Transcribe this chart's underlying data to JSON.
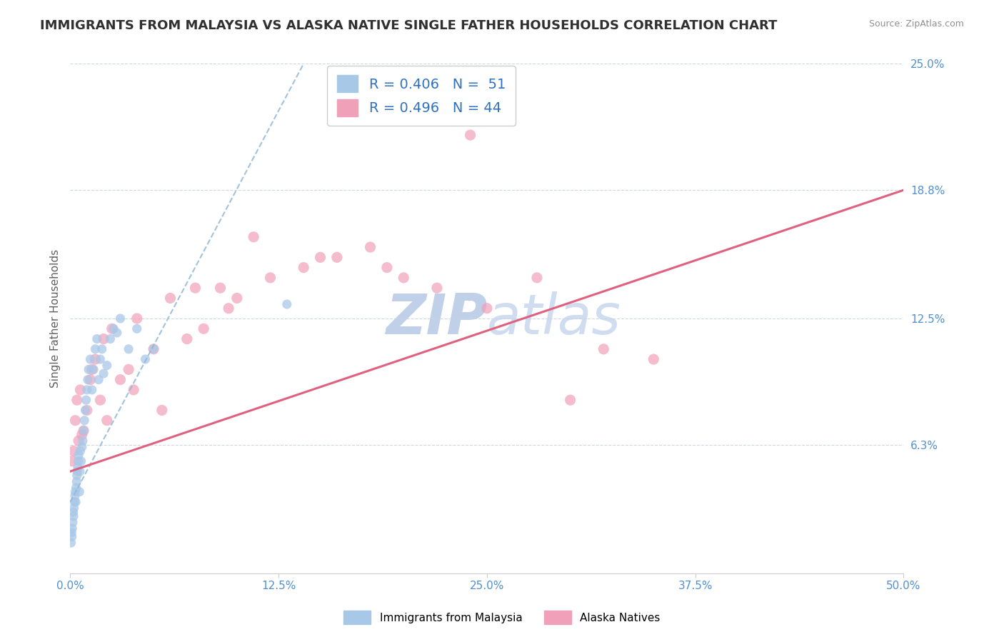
{
  "title": "IMMIGRANTS FROM MALAYSIA VS ALASKA NATIVE SINGLE FATHER HOUSEHOLDS CORRELATION CHART",
  "source": "Source: ZipAtlas.com",
  "ylabel": "Single Father Households",
  "legend_blue_r": "R = 0.406",
  "legend_blue_n": "N =  51",
  "legend_pink_r": "R = 0.496",
  "legend_pink_n": "N = 44",
  "xlim": [
    0.0,
    50.0
  ],
  "ylim": [
    0.0,
    25.0
  ],
  "blue_color": "#a8c8e8",
  "pink_color": "#f0a0b8",
  "blue_line_color": "#90b8d8",
  "pink_line_color": "#e06080",
  "watermark_color": "#c8d8f0",
  "background_color": "#ffffff",
  "grid_color": "#c8d4e4",
  "tick_color": "#5090d0",
  "title_color": "#303030",
  "source_color": "#909090",
  "blue_scatter_x": [
    0.05,
    0.08,
    0.1,
    0.12,
    0.15,
    0.18,
    0.2,
    0.22,
    0.25,
    0.28,
    0.3,
    0.33,
    0.35,
    0.38,
    0.4,
    0.42,
    0.45,
    0.48,
    0.5,
    0.55,
    0.58,
    0.6,
    0.65,
    0.7,
    0.75,
    0.8,
    0.85,
    0.9,
    0.95,
    1.0,
    1.05,
    1.1,
    1.2,
    1.3,
    1.4,
    1.5,
    1.6,
    1.7,
    1.8,
    1.9,
    2.0,
    2.2,
    2.4,
    2.6,
    2.8,
    3.0,
    3.5,
    4.0,
    4.5,
    5.0,
    13.0
  ],
  "blue_scatter_y": [
    1.5,
    2.0,
    1.8,
    2.2,
    2.5,
    3.0,
    2.8,
    3.2,
    3.5,
    3.8,
    4.0,
    3.5,
    4.2,
    4.5,
    4.8,
    5.0,
    5.2,
    5.5,
    5.8,
    4.0,
    5.0,
    6.0,
    5.5,
    6.2,
    6.5,
    7.0,
    7.5,
    8.0,
    8.5,
    9.0,
    9.5,
    10.0,
    10.5,
    9.0,
    10.0,
    11.0,
    11.5,
    9.5,
    10.5,
    11.0,
    9.8,
    10.2,
    11.5,
    12.0,
    11.8,
    12.5,
    11.0,
    12.0,
    10.5,
    11.0,
    13.2
  ],
  "pink_scatter_x": [
    0.1,
    0.2,
    0.3,
    0.4,
    0.5,
    0.6,
    0.8,
    1.0,
    1.2,
    1.5,
    1.8,
    2.0,
    2.5,
    3.0,
    3.5,
    4.0,
    5.0,
    6.0,
    7.0,
    8.0,
    9.0,
    10.0,
    12.0,
    14.0,
    16.0,
    18.0,
    20.0,
    22.0,
    25.0,
    28.0,
    30.0,
    35.0,
    0.7,
    1.3,
    2.2,
    3.8,
    5.5,
    7.5,
    9.5,
    11.0,
    15.0,
    19.0,
    24.0,
    32.0
  ],
  "pink_scatter_y": [
    5.5,
    6.0,
    7.5,
    8.5,
    6.5,
    9.0,
    7.0,
    8.0,
    9.5,
    10.5,
    8.5,
    11.5,
    12.0,
    9.5,
    10.0,
    12.5,
    11.0,
    13.5,
    11.5,
    12.0,
    14.0,
    13.5,
    14.5,
    15.0,
    15.5,
    16.0,
    14.5,
    14.0,
    13.0,
    14.5,
    8.5,
    10.5,
    6.8,
    10.0,
    7.5,
    9.0,
    8.0,
    14.0,
    13.0,
    16.5,
    15.5,
    15.0,
    21.5,
    11.0
  ],
  "blue_trendline_x0": 0.0,
  "blue_trendline_y0": 3.5,
  "blue_trendline_x1": 14.0,
  "blue_trendline_y1": 25.0,
  "pink_trendline_x0": 0.0,
  "pink_trendline_y0": 5.0,
  "pink_trendline_x1": 50.0,
  "pink_trendline_y1": 18.8
}
